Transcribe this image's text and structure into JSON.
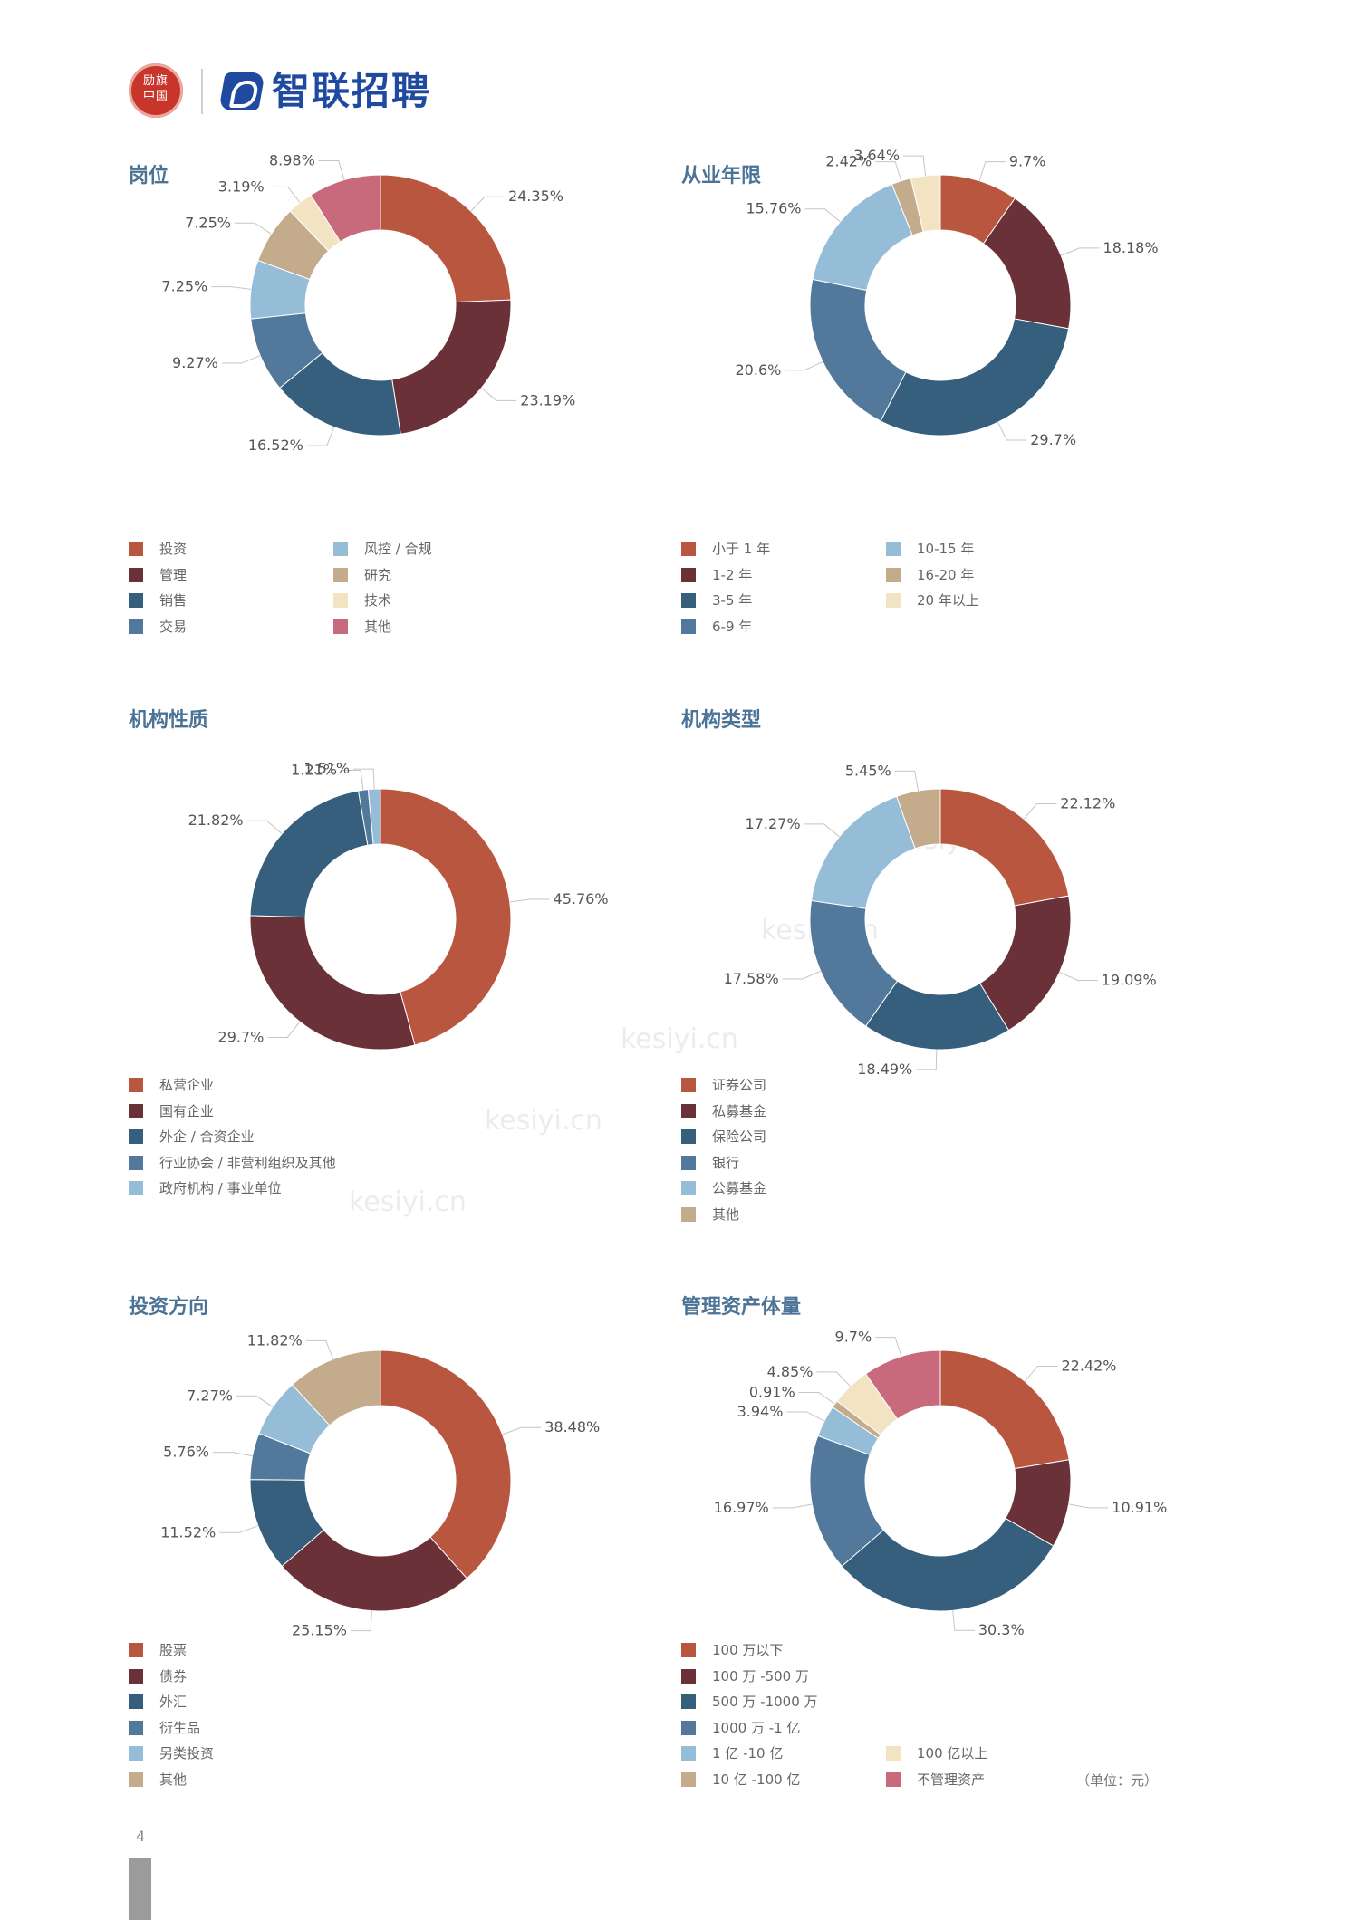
{
  "header": {
    "seal_text": "励旗中国",
    "logo_text": "智联招聘"
  },
  "page_number": "4",
  "unit_note": "（单位：元）",
  "watermark_text": "kesiyi.cn",
  "chart_data": [
    {
      "type": "pie",
      "title": "岗位",
      "categories": [
        "投资",
        "管理",
        "销售",
        "交易",
        "风控 / 合规",
        "研究",
        "技术",
        "其他"
      ],
      "values": [
        24.35,
        23.19,
        16.52,
        9.27,
        7.25,
        7.25,
        3.19,
        8.98
      ],
      "labels": [
        "24.35%",
        "23.19%",
        "16.52%",
        "9.27%",
        "7.25%",
        "7.25%",
        "3.19%",
        "8.98%"
      ],
      "colors": [
        "#b9563f",
        "#6a3238",
        "#355f7c",
        "#52799b",
        "#95bdd8",
        "#c3ab8c",
        "#f2e3c3",
        "#c86a7c"
      ]
    },
    {
      "type": "pie",
      "title": "从业年限",
      "categories": [
        "小于 1 年",
        "1-2 年",
        "3-5 年",
        "6-9 年",
        "10-15 年",
        "16-20 年",
        "20 年以上"
      ],
      "values": [
        9.7,
        18.18,
        29.7,
        20.6,
        15.76,
        2.42,
        3.64
      ],
      "labels": [
        "9.7%",
        "18.18%",
        "29.7%",
        "20.6%",
        "15.76%",
        "2.42%",
        "3.64%"
      ],
      "colors": [
        "#b9563f",
        "#6a3238",
        "#355f7c",
        "#52799b",
        "#95bdd8",
        "#c3ab8c",
        "#f2e3c3"
      ]
    },
    {
      "type": "pie",
      "title": "机构性质",
      "categories": [
        "私营企业",
        "国有企业",
        "外企 / 合资企业",
        "行业协会 / 非营利组织及其他",
        "政府机构 / 事业单位"
      ],
      "values": [
        45.76,
        29.7,
        21.82,
        1.21,
        1.51
      ],
      "labels": [
        "45.76%",
        "29.7%",
        "21.82%",
        "1.21%",
        "1.51%"
      ],
      "colors": [
        "#b9563f",
        "#6a3238",
        "#355f7c",
        "#52799b",
        "#95bdd8"
      ]
    },
    {
      "type": "pie",
      "title": "机构类型",
      "categories": [
        "证券公司",
        "私募基金",
        "保险公司",
        "银行",
        "公募基金",
        "其他"
      ],
      "values": [
        22.12,
        19.09,
        18.49,
        17.58,
        17.27,
        5.45
      ],
      "labels": [
        "22.12%",
        "19.09%",
        "18.49%",
        "17.58%",
        "17.27%",
        "5.45%"
      ],
      "colors": [
        "#b9563f",
        "#6a3238",
        "#355f7c",
        "#52799b",
        "#95bdd8",
        "#c3ab8c"
      ]
    },
    {
      "type": "pie",
      "title": "投资方向",
      "categories": [
        "股票",
        "债券",
        "外汇",
        "衍生品",
        "另类投资",
        "其他"
      ],
      "values": [
        38.48,
        25.15,
        11.52,
        5.76,
        7.27,
        11.82
      ],
      "labels": [
        "38.48%",
        "25.15%",
        "11.52%",
        "5.76%",
        "7.27%",
        "11.82%"
      ],
      "colors": [
        "#b9563f",
        "#6a3238",
        "#355f7c",
        "#52799b",
        "#95bdd8",
        "#c3ab8c"
      ]
    },
    {
      "type": "pie",
      "title": "管理资产体量",
      "categories": [
        "100 万以下",
        "100 万 -500 万",
        "500 万 -1000 万",
        "1000 万 -1 亿",
        "1 亿 -10 亿",
        "10 亿 -100 亿",
        "100 亿以上",
        "不管理资产"
      ],
      "values": [
        22.42,
        10.91,
        30.3,
        16.97,
        3.94,
        0.91,
        4.85,
        9.7
      ],
      "labels": [
        "22.42%",
        "10.91%",
        "30.3%",
        "16.97%",
        "3.94%",
        "0.91%",
        "4.85%",
        "9.7%"
      ],
      "colors": [
        "#b9563f",
        "#6a3238",
        "#355f7c",
        "#52799b",
        "#95bdd8",
        "#c3ab8c",
        "#f2e3c3",
        "#c86a7c"
      ]
    }
  ]
}
